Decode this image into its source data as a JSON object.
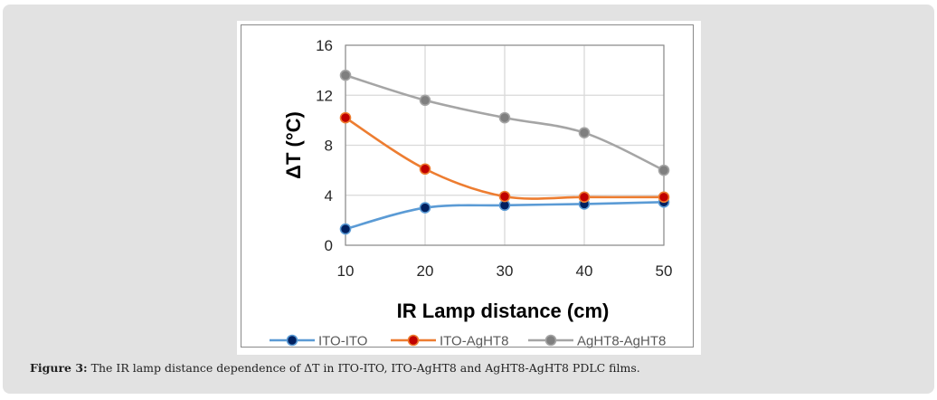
{
  "caption": {
    "label": "Figure 3:",
    "text": " The IR lamp distance dependence of ΔT in ITO-ITO, ITO-AgHT8 and AgHT8-AgHT8 PDLC films."
  },
  "chart_data": {
    "type": "line",
    "title": "",
    "xlabel": "IR Lamp distance (cm)",
    "ylabel": "ΔT (°C)",
    "x": [
      10,
      20,
      30,
      40,
      50
    ],
    "xticks": [
      "10",
      "20",
      "30",
      "40",
      "50"
    ],
    "yticks": [
      "0",
      "4",
      "8",
      "12",
      "16"
    ],
    "ylim": [
      0,
      16
    ],
    "grid": true,
    "smoothed": true,
    "legend_position": "bottom",
    "series": [
      {
        "name": "ITO-ITO",
        "color": "#5b9bd5",
        "marker_color": "#002060",
        "values": [
          1.3,
          3.0,
          3.2,
          3.3,
          3.45
        ]
      },
      {
        "name": "ITO-AgHT8",
        "color": "#ed7d31",
        "marker_color": "#c00000",
        "values": [
          10.2,
          6.1,
          3.9,
          3.85,
          3.85
        ]
      },
      {
        "name": "AgHT8-AgHT8",
        "color": "#a5a5a5",
        "marker_color": "#7f7f7f",
        "values": [
          13.6,
          11.6,
          10.2,
          9.0,
          6.0
        ]
      }
    ]
  }
}
